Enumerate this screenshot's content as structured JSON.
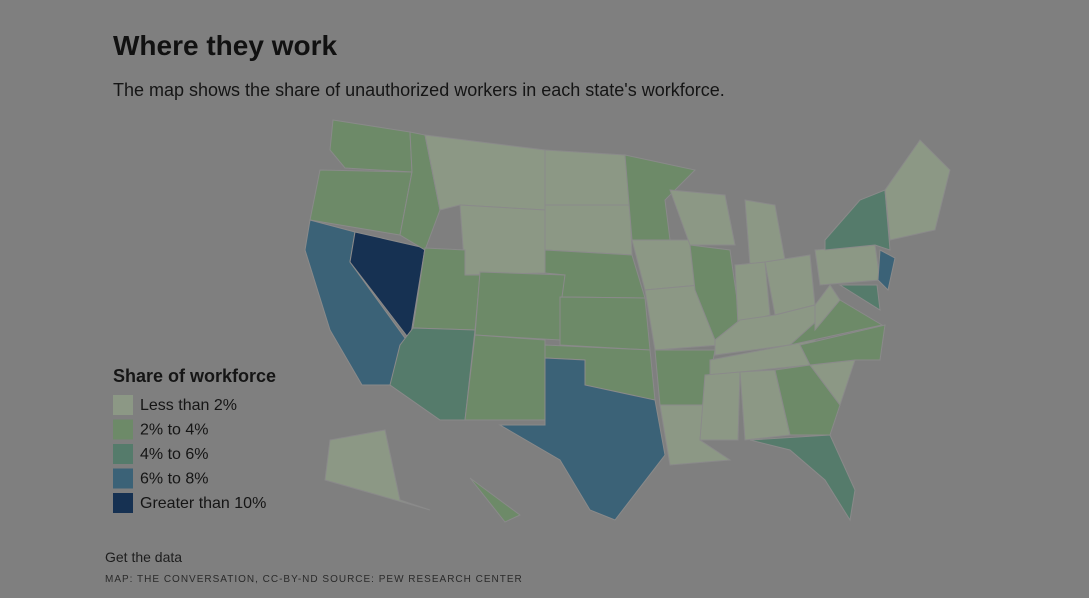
{
  "header": {
    "title": "Where they work",
    "subtitle": "The map shows the share of unauthorized workers in each state's workforce."
  },
  "legend": {
    "title": "Share of workforce",
    "items": [
      {
        "label": "Less than 2%",
        "color": "#8c9885"
      },
      {
        "label": "2% to 4%",
        "color": "#6d8a68"
      },
      {
        "label": "4% to 6%",
        "color": "#557b6b"
      },
      {
        "label": "6% to 8%",
        "color": "#3b6277"
      },
      {
        "label": "Greater than 10%",
        "color": "#163152"
      }
    ]
  },
  "footer": {
    "link": "Get the data",
    "credit": "MAP: THE CONVERSATION, CC-BY-ND SOURCE: PEW RESEARCH CENTER"
  }
}
